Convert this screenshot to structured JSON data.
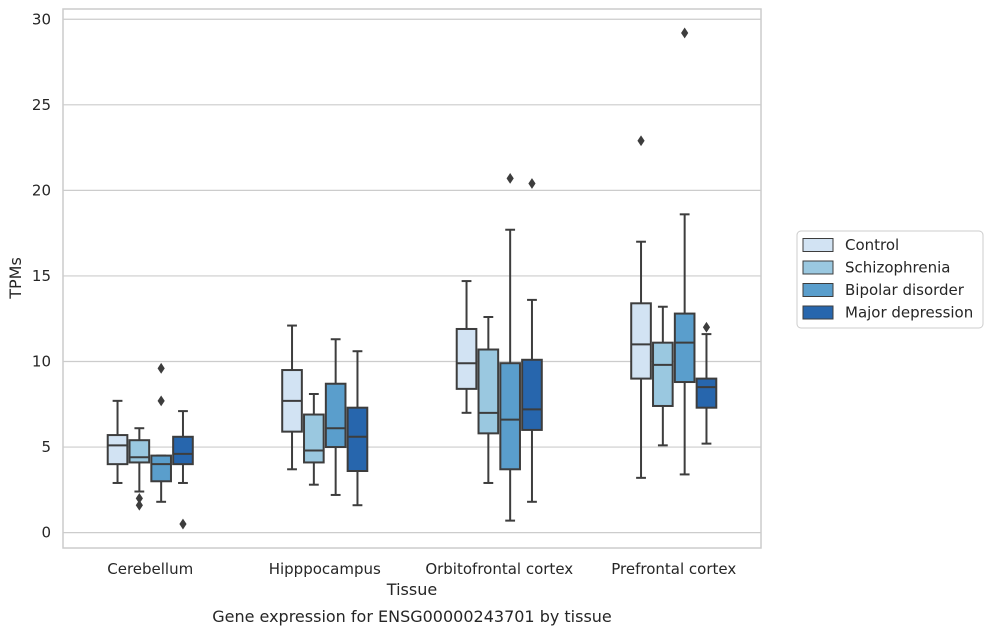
{
  "chart_data": {
    "type": "box",
    "title": "",
    "caption": "Gene expression for ENSG00000243701 by tissue",
    "xlabel": "Tissue",
    "ylabel": "TPMs",
    "ylim": [
      -0.9,
      30.6
    ],
    "yticks": [
      "0",
      "5",
      "10",
      "15",
      "20",
      "25",
      "30"
    ],
    "grid": "horizontal",
    "legend_position": "right",
    "categories": [
      "Cerebellum",
      "Hipppocampus",
      "Orbitofrontal cortex",
      "Prefrontal cortex"
    ],
    "series": [
      {
        "name": "Control",
        "color": "#d2e3f3",
        "boxes": [
          {
            "whislo": 2.9,
            "q1": 4.0,
            "med": 5.1,
            "q3": 5.7,
            "whishi": 7.7,
            "fliers": []
          },
          {
            "whislo": 3.7,
            "q1": 5.9,
            "med": 7.7,
            "q3": 9.5,
            "whishi": 12.1,
            "fliers": []
          },
          {
            "whislo": 7.0,
            "q1": 8.4,
            "med": 9.9,
            "q3": 11.9,
            "whishi": 14.7,
            "fliers": []
          },
          {
            "whislo": 3.2,
            "q1": 9.0,
            "med": 11.0,
            "q3": 13.4,
            "whishi": 17.0,
            "fliers": [
              22.9
            ]
          }
        ]
      },
      {
        "name": "Schizophrenia",
        "color": "#9ac8e0",
        "boxes": [
          {
            "whislo": 2.4,
            "q1": 4.1,
            "med": 4.4,
            "q3": 5.4,
            "whishi": 6.1,
            "fliers": [
              2.0,
              1.6
            ]
          },
          {
            "whislo": 2.8,
            "q1": 4.1,
            "med": 4.8,
            "q3": 6.9,
            "whishi": 8.1,
            "fliers": []
          },
          {
            "whislo": 2.9,
            "q1": 5.8,
            "med": 7.0,
            "q3": 10.7,
            "whishi": 12.6,
            "fliers": []
          },
          {
            "whislo": 5.1,
            "q1": 7.4,
            "med": 9.8,
            "q3": 11.1,
            "whishi": 13.2,
            "fliers": []
          }
        ]
      },
      {
        "name": "Bipolar disorder",
        "color": "#5a9ecc",
        "boxes": [
          {
            "whislo": 1.8,
            "q1": 3.0,
            "med": 4.0,
            "q3": 4.5,
            "whishi": 4.5,
            "fliers": [
              9.6,
              7.7
            ]
          },
          {
            "whislo": 2.2,
            "q1": 5.0,
            "med": 6.1,
            "q3": 8.7,
            "whishi": 11.3,
            "fliers": []
          },
          {
            "whislo": 0.7,
            "q1": 3.7,
            "med": 6.6,
            "q3": 9.9,
            "whishi": 17.7,
            "fliers": [
              20.7
            ]
          },
          {
            "whislo": 3.4,
            "q1": 8.8,
            "med": 11.1,
            "q3": 12.8,
            "whishi": 18.6,
            "fliers": [
              29.2
            ]
          }
        ]
      },
      {
        "name": "Major depression",
        "color": "#2766ad",
        "boxes": [
          {
            "whislo": 2.9,
            "q1": 4.0,
            "med": 4.6,
            "q3": 5.6,
            "whishi": 7.1,
            "fliers": [
              0.5
            ]
          },
          {
            "whislo": 1.6,
            "q1": 3.6,
            "med": 5.6,
            "q3": 7.3,
            "whishi": 10.6,
            "fliers": []
          },
          {
            "whislo": 1.8,
            "q1": 6.0,
            "med": 7.2,
            "q3": 10.1,
            "whishi": 13.6,
            "fliers": [
              20.4
            ]
          },
          {
            "whislo": 5.2,
            "q1": 7.3,
            "med": 8.5,
            "q3": 9.0,
            "whishi": 11.6,
            "fliers": [
              12.0
            ]
          }
        ]
      }
    ]
  }
}
